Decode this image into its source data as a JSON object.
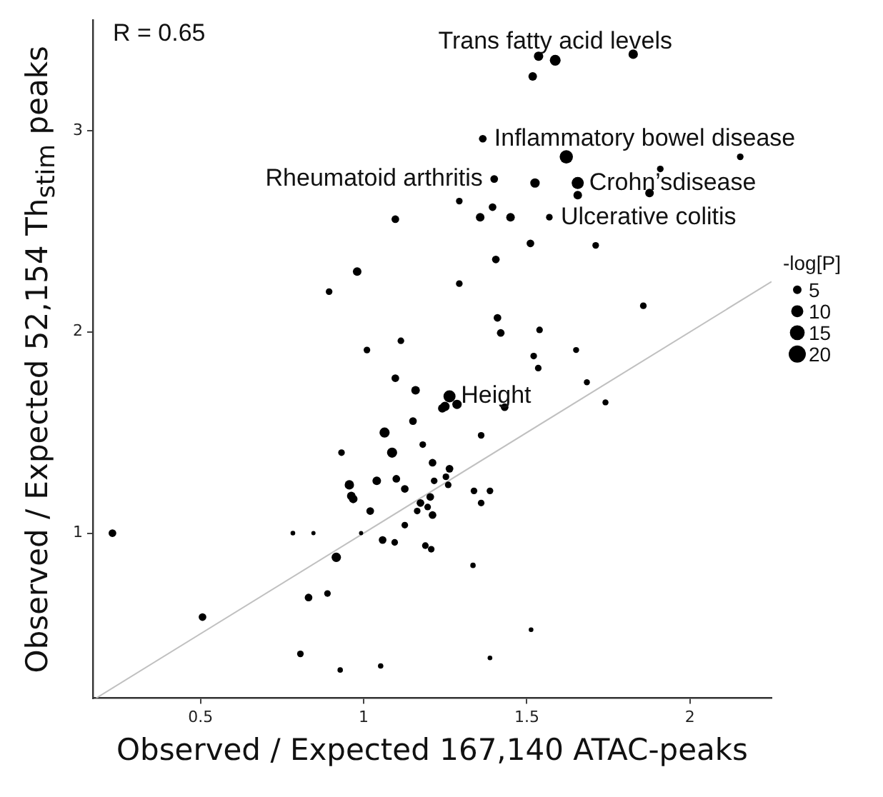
{
  "chart_data": {
    "type": "bubble",
    "xlabel": "Observed / Expected 167,140 ATAC-peaks",
    "ylabel": "Observed / Expected 52,154 Th$_{stim}$ peaks",
    "legend_title": "-log[P]",
    "grid": false,
    "xlim": [
      0.17,
      2.25
    ],
    "ylim": [
      0.18,
      3.55
    ],
    "xticks": [
      0.5,
      1,
      1.5,
      2
    ],
    "yticks": [
      1,
      2,
      3
    ],
    "size_legend": [
      5,
      10,
      15,
      20
    ],
    "series": [
      {
        "type": "line",
        "color": "#c0c0c0",
        "x": [
          0.18,
          2.25
        ],
        "values": [
          0.18,
          2.25
        ]
      },
      {
        "color": "#000000",
        "x": [
          1.536,
          1.587,
          1.826,
          1.518,
          1.365,
          1.621,
          2.154,
          1.909,
          1.4,
          1.525,
          1.656,
          1.656,
          1.876,
          1.293,
          1.395,
          1.357,
          1.45,
          1.569,
          1.511,
          1.711,
          1.405,
          1.293,
          1.857,
          1.41,
          1.42,
          1.539,
          1.651,
          1.521,
          1.535,
          1.684,
          1.097,
          0.98,
          0.894,
          1.114,
          1.01,
          1.097,
          1.159,
          1.151,
          1.064,
          1.181,
          0.932,
          1.087,
          0.956,
          0.968,
          0.962,
          1.04,
          1.1,
          1.126,
          1.02,
          1.174,
          1.164,
          1.126,
          0.23,
          0.783,
          0.846,
          0.992,
          1.058,
          1.095,
          1.189,
          0.916,
          0.889,
          0.831,
          0.506,
          0.806,
          0.928,
          1.052,
          1.263,
          1.249,
          1.286,
          1.241,
          1.432,
          1.741,
          1.36,
          1.211,
          1.263,
          1.252,
          1.216,
          1.259,
          1.338,
          1.387,
          1.204,
          1.196,
          1.36,
          1.211,
          1.207,
          1.335,
          1.513,
          1.387
        ],
        "values": [
          3.37,
          3.35,
          3.38,
          3.27,
          2.96,
          2.87,
          2.87,
          2.81,
          2.76,
          2.74,
          2.74,
          2.68,
          2.69,
          2.65,
          2.62,
          2.57,
          2.57,
          2.57,
          2.44,
          2.43,
          2.36,
          2.24,
          2.13,
          2.07,
          1.995,
          2.01,
          1.91,
          1.88,
          1.82,
          1.75,
          2.56,
          2.3,
          2.2,
          1.956,
          1.91,
          1.77,
          1.71,
          1.557,
          1.5,
          1.44,
          1.4,
          1.4,
          1.24,
          1.17,
          1.185,
          1.26,
          1.27,
          1.22,
          1.11,
          1.15,
          1.11,
          1.04,
          1.0,
          1.0,
          1.0,
          1.0,
          0.966,
          0.954,
          0.938,
          0.88,
          0.7,
          0.68,
          0.583,
          0.4,
          0.32,
          0.34,
          1.68,
          1.63,
          1.64,
          1.62,
          1.626,
          1.65,
          1.486,
          1.35,
          1.32,
          1.28,
          1.26,
          1.24,
          1.21,
          1.21,
          1.18,
          1.13,
          1.15,
          1.09,
          0.92,
          0.84,
          0.52,
          0.38
        ],
        "sizes": [
          6,
          8,
          6,
          5,
          4,
          12,
          3,
          3,
          4,
          6,
          10,
          5,
          5,
          3,
          4,
          5,
          5,
          3,
          4,
          3,
          4,
          3,
          3,
          4,
          4,
          3,
          2.5,
          3,
          3,
          2.5,
          4,
          5,
          3,
          3,
          3,
          4,
          5,
          4,
          7,
          3,
          3,
          7,
          6,
          5,
          5,
          5,
          4,
          4,
          4,
          4,
          3,
          3,
          4,
          1.5,
          1.2,
          1.2,
          4,
          3,
          3,
          6,
          3,
          4,
          4,
          3,
          2,
          2,
          10,
          6,
          6,
          5,
          4,
          2.5,
          3,
          4,
          4,
          3,
          3,
          3,
          3,
          3,
          4,
          3,
          3,
          4,
          3,
          2,
          1.5,
          1.5
        ]
      }
    ],
    "annotations": [
      "R = 0.65",
      {
        "text": "Trans fatty acid levels",
        "x": 1.587,
        "y": 3.35
      },
      {
        "text": "Inflammatory bowel disease",
        "x": 1.365,
        "y": 2.96
      },
      {
        "text": "Crohn’sdisease",
        "x": 1.656,
        "y": 2.74
      },
      {
        "text": "Ulcerative colitis",
        "x": 1.569,
        "y": 2.57
      },
      {
        "text": "Height",
        "x": 1.263,
        "y": 1.68
      },
      {
        "text": "Rheumatoid arthritis",
        "x": 1.4,
        "y": 2.76
      }
    ]
  }
}
